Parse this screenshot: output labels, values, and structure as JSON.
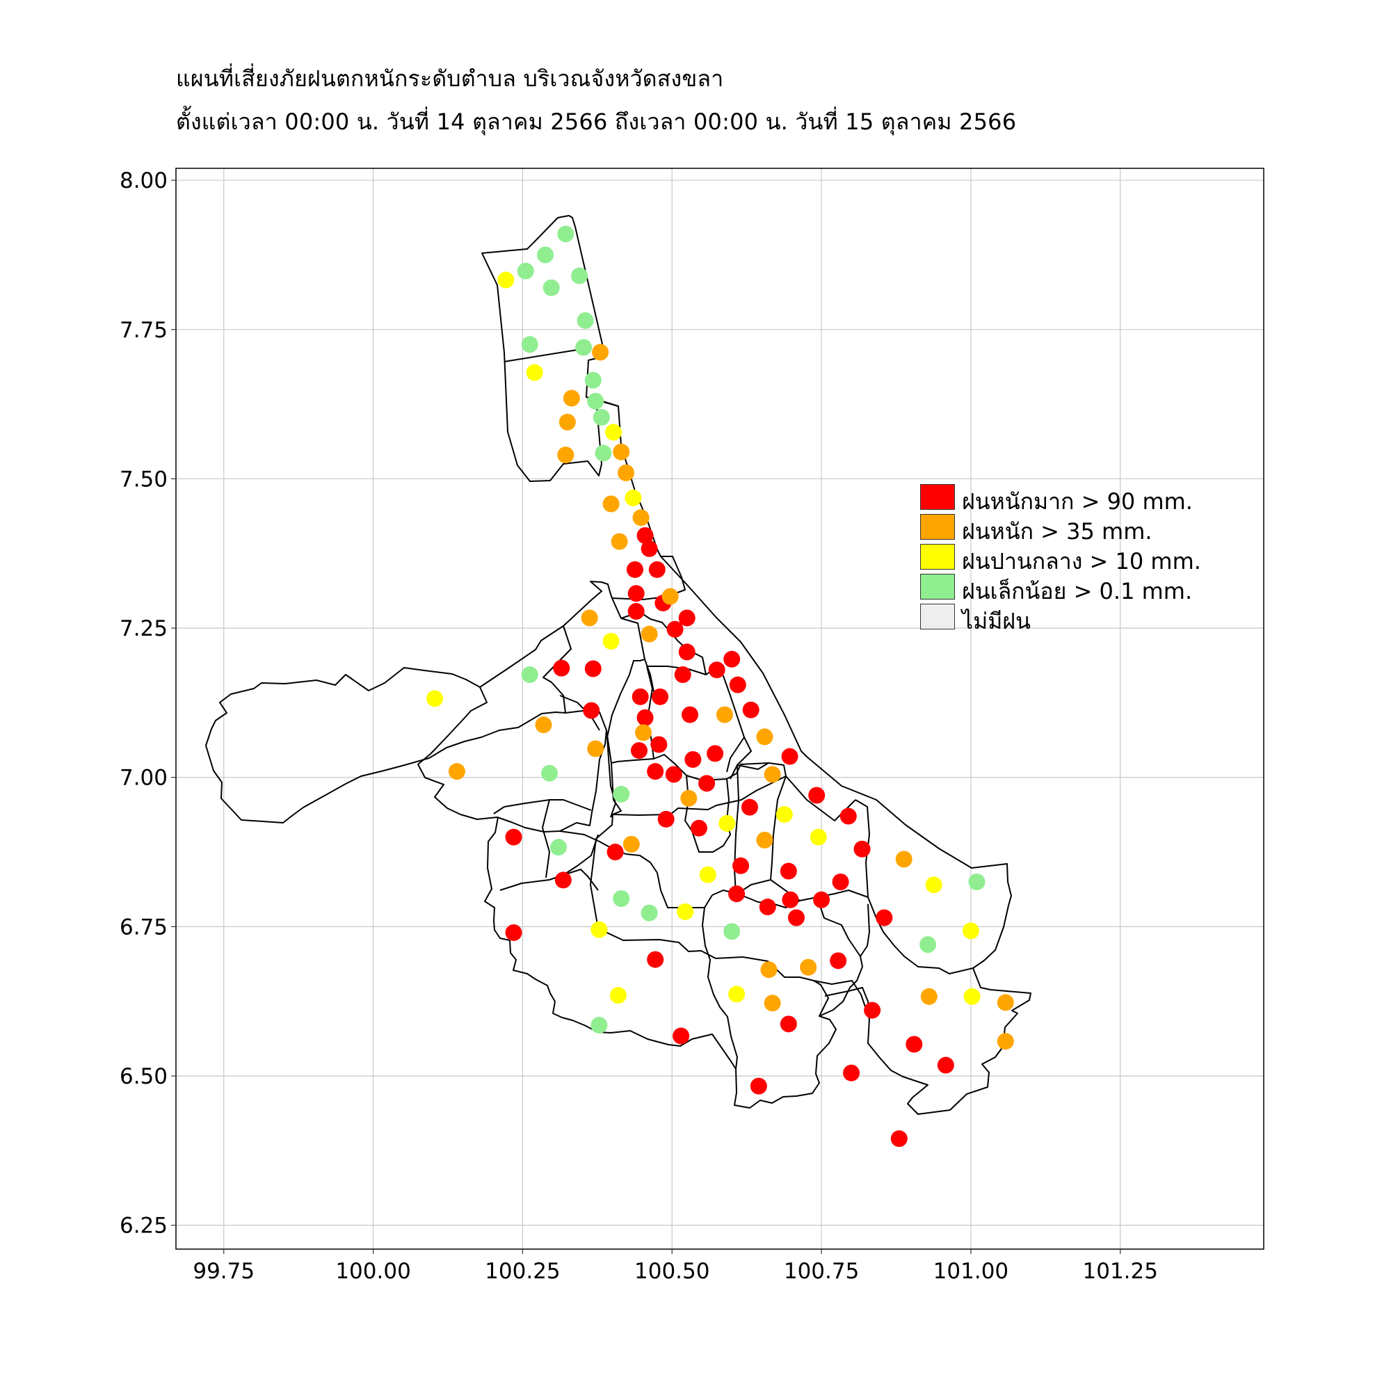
{
  "title": {
    "line1": "แผนที่เสี่ยงภัยฝนตกหนักระดับตำบล บริเวณจังหวัดสงขลา",
    "line2": "ตั้งแต่เวลา 00:00 น. วันที่ 14 ตุลาคม 2566 ถึงเวลา 00:00 น. วันที่ 15 ตุลาคม 2566"
  },
  "legend": [
    {
      "label": "ฝนหนักมาก > 90 mm.",
      "color": "#ff0000"
    },
    {
      "label": "ฝนหนัก > 35 mm.",
      "color": "#ffa500"
    },
    {
      "label": "ฝนปานกลาง > 10 mm.",
      "color": "#ffff00"
    },
    {
      "label": "ฝนเล็กน้อย > 0.1 mm.",
      "color": "#90ee90"
    },
    {
      "label": "ไม่มีฝน",
      "color": "#eeeeee"
    }
  ],
  "chart_data": {
    "type": "scatter",
    "xlim": [
      99.67,
      101.49
    ],
    "ylim": [
      6.21,
      8.02
    ],
    "x_ticks": [
      "99.75",
      "100.00",
      "100.25",
      "100.50",
      "100.75",
      "101.00",
      "101.25"
    ],
    "y_ticks": [
      "6.25",
      "6.50",
      "6.75",
      "7.00",
      "7.25",
      "7.50",
      "7.75",
      "8.00"
    ],
    "grid": true,
    "series": [
      {
        "name": "heavy",
        "color": "#ff0000",
        "points": [
          [
            100.455,
            7.405
          ],
          [
            100.462,
            7.383
          ],
          [
            100.438,
            7.348
          ],
          [
            100.475,
            7.348
          ],
          [
            100.44,
            7.308
          ],
          [
            100.485,
            7.292
          ],
          [
            100.44,
            7.278
          ],
          [
            100.525,
            7.267
          ],
          [
            100.505,
            7.248
          ],
          [
            100.525,
            7.21
          ],
          [
            100.6,
            7.198
          ],
          [
            100.575,
            7.18
          ],
          [
            100.315,
            7.183
          ],
          [
            100.368,
            7.182
          ],
          [
            100.518,
            7.172
          ],
          [
            100.61,
            7.155
          ],
          [
            100.447,
            7.135
          ],
          [
            100.48,
            7.135
          ],
          [
            100.365,
            7.112
          ],
          [
            100.632,
            7.113
          ],
          [
            100.53,
            7.105
          ],
          [
            100.455,
            7.1
          ],
          [
            100.478,
            7.055
          ],
          [
            100.445,
            7.045
          ],
          [
            100.572,
            7.04
          ],
          [
            100.697,
            7.035
          ],
          [
            100.535,
            7.03
          ],
          [
            100.472,
            7.01
          ],
          [
            100.503,
            7.005
          ],
          [
            100.558,
            6.99
          ],
          [
            100.742,
            6.97
          ],
          [
            100.63,
            6.95
          ],
          [
            100.795,
            6.935
          ],
          [
            100.49,
            6.93
          ],
          [
            100.545,
            6.915
          ],
          [
            100.235,
            6.9
          ],
          [
            100.405,
            6.875
          ],
          [
            100.818,
            6.88
          ],
          [
            100.615,
            6.852
          ],
          [
            100.695,
            6.843
          ],
          [
            100.318,
            6.828
          ],
          [
            100.782,
            6.825
          ],
          [
            100.608,
            6.805
          ],
          [
            100.698,
            6.795
          ],
          [
            100.75,
            6.795
          ],
          [
            100.66,
            6.783
          ],
          [
            100.708,
            6.765
          ],
          [
            100.855,
            6.765
          ],
          [
            100.235,
            6.74
          ],
          [
            100.472,
            6.695
          ],
          [
            100.778,
            6.693
          ],
          [
            100.835,
            6.61
          ],
          [
            100.695,
            6.587
          ],
          [
            100.515,
            6.567
          ],
          [
            100.905,
            6.553
          ],
          [
            100.958,
            6.518
          ],
          [
            100.8,
            6.505
          ],
          [
            100.645,
            6.483
          ],
          [
            100.88,
            6.395
          ]
        ]
      },
      {
        "name": "moderate_heavy",
        "color": "#ffa500",
        "points": [
          [
            100.38,
            7.712
          ],
          [
            100.332,
            7.635
          ],
          [
            100.325,
            7.595
          ],
          [
            100.322,
            7.54
          ],
          [
            100.415,
            7.545
          ],
          [
            100.423,
            7.51
          ],
          [
            100.398,
            7.458
          ],
          [
            100.448,
            7.435
          ],
          [
            100.412,
            7.395
          ],
          [
            100.497,
            7.303
          ],
          [
            100.462,
            7.24
          ],
          [
            100.362,
            7.267
          ],
          [
            100.285,
            7.088
          ],
          [
            100.588,
            7.105
          ],
          [
            100.452,
            7.075
          ],
          [
            100.655,
            7.068
          ],
          [
            100.372,
            7.048
          ],
          [
            100.14,
            7.01
          ],
          [
            100.668,
            7.005
          ],
          [
            100.528,
            6.965
          ],
          [
            100.432,
            6.888
          ],
          [
            100.655,
            6.895
          ],
          [
            100.888,
            6.863
          ],
          [
            100.662,
            6.678
          ],
          [
            100.728,
            6.682
          ],
          [
            100.93,
            6.633
          ],
          [
            100.668,
            6.622
          ],
          [
            101.058,
            6.623
          ],
          [
            101.058,
            6.558
          ]
        ]
      },
      {
        "name": "moderate",
        "color": "#ffff00",
        "points": [
          [
            100.222,
            7.833
          ],
          [
            100.27,
            7.678
          ],
          [
            100.402,
            7.578
          ],
          [
            100.435,
            7.468
          ],
          [
            100.398,
            7.228
          ],
          [
            100.103,
            7.132
          ],
          [
            100.688,
            6.938
          ],
          [
            100.592,
            6.923
          ],
          [
            100.745,
            6.9
          ],
          [
            100.56,
            6.837
          ],
          [
            100.938,
            6.82
          ],
          [
            100.522,
            6.775
          ],
          [
            100.378,
            6.745
          ],
          [
            101.0,
            6.743
          ],
          [
            100.41,
            6.635
          ],
          [
            100.608,
            6.637
          ],
          [
            101.002,
            6.633
          ]
        ]
      },
      {
        "name": "light",
        "color": "#90ee90",
        "points": [
          [
            100.322,
            7.91
          ],
          [
            100.288,
            7.875
          ],
          [
            100.255,
            7.848
          ],
          [
            100.345,
            7.84
          ],
          [
            100.298,
            7.82
          ],
          [
            100.355,
            7.765
          ],
          [
            100.262,
            7.725
          ],
          [
            100.352,
            7.72
          ],
          [
            100.368,
            7.665
          ],
          [
            100.372,
            7.63
          ],
          [
            100.382,
            7.603
          ],
          [
            100.385,
            7.543
          ],
          [
            100.262,
            7.172
          ],
          [
            100.295,
            7.007
          ],
          [
            100.415,
            6.972
          ],
          [
            100.31,
            6.883
          ],
          [
            100.415,
            6.797
          ],
          [
            100.462,
            6.773
          ],
          [
            100.6,
            6.742
          ],
          [
            100.928,
            6.72
          ],
          [
            101.01,
            6.825
          ],
          [
            100.378,
            6.585
          ]
        ]
      }
    ]
  }
}
